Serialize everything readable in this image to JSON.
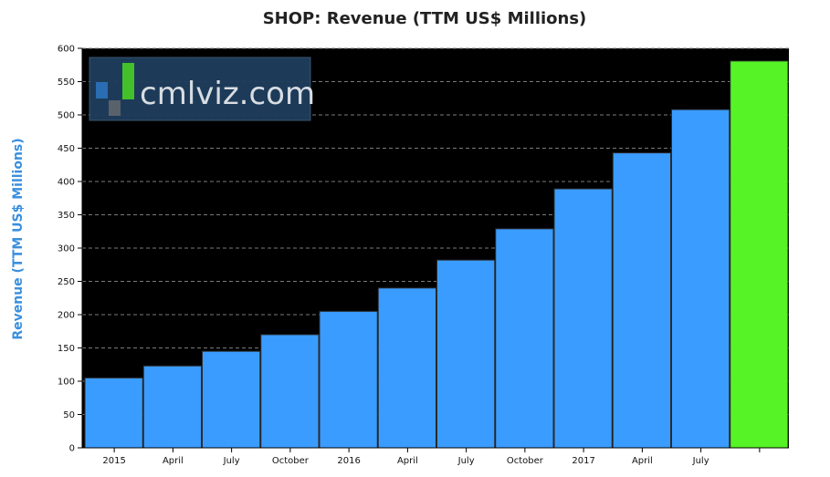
{
  "chart_data": {
    "type": "bar",
    "title": "SHOP: Revenue (TTM US$ Millions)",
    "ylabel": "Revenue (TTM US$ Millions)",
    "xlabel": "",
    "categories": [
      "2015",
      "April",
      "July",
      "October",
      "2016",
      "April",
      "July",
      "October",
      "2017",
      "April",
      "July",
      ""
    ],
    "values": [
      105,
      123,
      145,
      170,
      205,
      240,
      282,
      329,
      389,
      443,
      508,
      581
    ],
    "bar_colors": [
      "#3a9cff",
      "#3a9cff",
      "#3a9cff",
      "#3a9cff",
      "#3a9cff",
      "#3a9cff",
      "#3a9cff",
      "#3a9cff",
      "#3a9cff",
      "#3a9cff",
      "#3a9cff",
      "#56f426"
    ],
    "ylim": [
      0,
      600
    ],
    "yticks": [
      0,
      50,
      100,
      150,
      200,
      250,
      300,
      350,
      400,
      450,
      500,
      550,
      600
    ],
    "grid": true,
    "background": "#000000"
  },
  "watermark": {
    "text": "cmlviz.com"
  }
}
